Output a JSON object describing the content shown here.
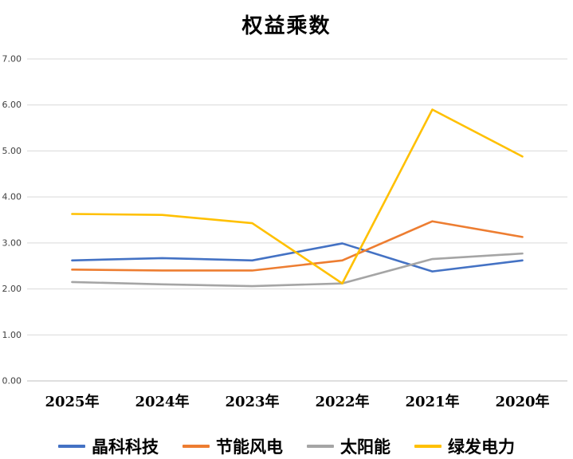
{
  "chart_data": {
    "type": "line",
    "title": "权益乘数",
    "categories": [
      "2025年",
      "2024年",
      "2023年",
      "2022年",
      "2021年",
      "2020年"
    ],
    "series": [
      {
        "name": "晶科科技",
        "color": "#4472C4",
        "values": [
          2.62,
          2.67,
          2.62,
          2.99,
          2.38,
          2.62
        ]
      },
      {
        "name": "节能风电",
        "color": "#ED7D31",
        "values": [
          2.42,
          2.4,
          2.4,
          2.62,
          3.47,
          3.13
        ]
      },
      {
        "name": "太阳能",
        "color": "#A5A5A5",
        "values": [
          2.15,
          2.1,
          2.06,
          2.12,
          2.65,
          2.77
        ]
      },
      {
        "name": "绿发电力",
        "color": "#FFC000",
        "values": [
          3.63,
          3.61,
          3.43,
          2.12,
          5.9,
          4.88
        ]
      }
    ],
    "xlabel": "",
    "ylabel": "",
    "ylim": [
      0,
      7
    ],
    "ytick_step": 1,
    "ytick_format": "two-decimals",
    "grid": true,
    "legend_position": "bottom",
    "colors": {
      "gridline": "#D9D9D9",
      "axis_line": "#BFBFBF",
      "tick_label": "#404040",
      "category_label": "#000000"
    }
  }
}
